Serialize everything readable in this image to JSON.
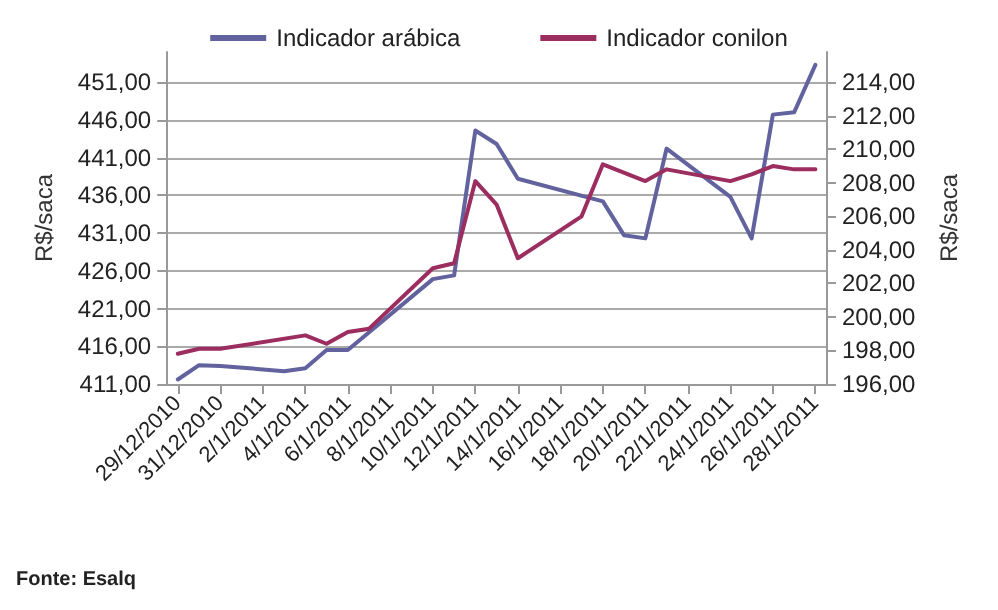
{
  "chart_data": {
    "type": "line",
    "ylabel": "R$/saca",
    "y2label": "R$/saca",
    "annotations": [
      "Fonte: Esalq"
    ],
    "xlim": [
      "2010-12-28T12:00",
      "2011-01-28T12:00"
    ],
    "xticks": [
      {
        "value": "2010-12-29",
        "label": "29/12/2010"
      },
      {
        "value": "2010-12-31",
        "label": "31/12/2010"
      },
      {
        "value": "2011-01-02",
        "label": "2/1/2011"
      },
      {
        "value": "2011-01-04",
        "label": "4/1/2011"
      },
      {
        "value": "2011-01-06",
        "label": "6/1/2011"
      },
      {
        "value": "2011-01-08",
        "label": "8/1/2011"
      },
      {
        "value": "2011-01-10",
        "label": "10/1/2011"
      },
      {
        "value": "2011-01-12",
        "label": "12/1/2011"
      },
      {
        "value": "2011-01-14",
        "label": "14/1/2011"
      },
      {
        "value": "2011-01-16",
        "label": "16/1/2011"
      },
      {
        "value": "2011-01-18",
        "label": "18/1/2011"
      },
      {
        "value": "2011-01-20",
        "label": "20/1/2011"
      },
      {
        "value": "2011-01-22",
        "label": "22/1/2011"
      },
      {
        "value": "2011-01-24",
        "label": "24/1/2011"
      },
      {
        "value": "2011-01-26",
        "label": "26/1/2011"
      },
      {
        "value": "2011-01-28",
        "label": "28/1/2011"
      }
    ],
    "ylim": [
      411,
      455
    ],
    "yticks": [
      {
        "value": 411,
        "label": "411,00"
      },
      {
        "value": 416,
        "label": "416,00"
      },
      {
        "value": 421,
        "label": "421,00"
      },
      {
        "value": 426,
        "label": "426,00"
      },
      {
        "value": 431,
        "label": "431,00"
      },
      {
        "value": 436,
        "label": "436,00"
      },
      {
        "value": 441,
        "label": "441,00"
      },
      {
        "value": 446,
        "label": "446,00"
      },
      {
        "value": 451,
        "label": "451,00"
      }
    ],
    "y2lim": [
      196,
      215.8
    ],
    "y2ticks": [
      {
        "value": 196,
        "label": "196,00"
      },
      {
        "value": 198,
        "label": "198,00"
      },
      {
        "value": 200,
        "label": "200,00"
      },
      {
        "value": 202,
        "label": "202,00"
      },
      {
        "value": 204,
        "label": "204,00"
      },
      {
        "value": 206,
        "label": "206,00"
      },
      {
        "value": 208,
        "label": "208,00"
      },
      {
        "value": 210,
        "label": "210,00"
      },
      {
        "value": 212,
        "label": "212,00"
      },
      {
        "value": 214,
        "label": "214,00"
      }
    ],
    "grid": "y",
    "legend": "top",
    "marker": "none",
    "line_style": "solid",
    "series": [
      {
        "name": "Indicador arábica",
        "color": "#62629e",
        "axis": "y",
        "x": [
          "2010-12-29",
          "2010-12-30",
          "2010-12-31",
          "2011-01-03",
          "2011-01-04",
          "2011-01-05",
          "2011-01-06",
          "2011-01-10",
          "2011-01-11",
          "2011-01-12",
          "2011-01-13",
          "2011-01-14",
          "2011-01-18",
          "2011-01-19",
          "2011-01-20",
          "2011-01-21",
          "2011-01-24",
          "2011-01-25",
          "2011-01-26",
          "2011-01-27",
          "2011-01-28"
        ],
        "values": [
          411.6,
          413.5,
          413.4,
          412.7,
          413.1,
          415.5,
          415.5,
          424.9,
          425.4,
          444.6,
          442.8,
          438.2,
          435.2,
          430.7,
          430.3,
          442.2,
          435.8,
          430.3,
          446.7,
          447.0,
          453.3
        ]
      },
      {
        "name": "Indicador conilon",
        "color": "#9b2d5f",
        "axis": "y2",
        "x": [
          "2010-12-29",
          "2010-12-30",
          "2010-12-31",
          "2011-01-04",
          "2011-01-05",
          "2011-01-06",
          "2011-01-07",
          "2011-01-10",
          "2011-01-11",
          "2011-01-12",
          "2011-01-13",
          "2011-01-14",
          "2011-01-17",
          "2011-01-18",
          "2011-01-20",
          "2011-01-21",
          "2011-01-24",
          "2011-01-25",
          "2011-01-26",
          "2011-01-27",
          "2011-01-28"
        ],
        "values": [
          197.8,
          198.1,
          198.1,
          198.9,
          198.4,
          199.1,
          199.3,
          202.9,
          203.2,
          208.1,
          206.7,
          203.5,
          206.0,
          209.1,
          208.1,
          208.8,
          208.1,
          208.5,
          209.0,
          208.8,
          208.8
        ]
      }
    ]
  }
}
